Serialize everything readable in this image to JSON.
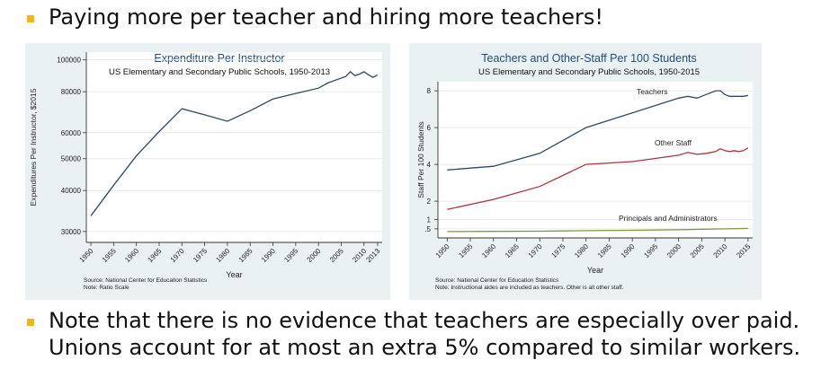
{
  "slide": {
    "heading": "Paying more per teacher and hiring more teachers!",
    "note_line1": "Note that there is no evidence that teachers are especially over paid.",
    "note_line2": "Unions account for at most an extra 5% compared to similar workers."
  },
  "colors": {
    "bullet": "#f2b51c",
    "panel_bg": "#eaf1f3",
    "title_blue": "#1f4e79",
    "teachers": "#2e4a62",
    "other_staff": "#a8343c",
    "principals": "#7a9a3a"
  },
  "chart_data": [
    {
      "type": "line",
      "title": "Expenditure Per Instructor",
      "subtitle": "US Elementary and Secondary Public Schools, 1950-2013",
      "xlabel": "Year",
      "ylabel": "Expenditures Per Instructor, $2015",
      "y_scale": "log",
      "ylim": [
        28500,
        103000
      ],
      "xlim": [
        1949,
        2014
      ],
      "x_ticks": [
        "1950",
        "1955",
        "1960",
        "1965",
        "1970",
        "1975",
        "1980",
        "1985",
        "1990",
        "1995",
        "2000",
        "2005",
        "2010",
        "2013"
      ],
      "y_ticks": [
        "30000",
        "40000",
        "50000",
        "60000",
        "80000",
        "100000"
      ],
      "y_tick_values": [
        30000,
        40000,
        50000,
        60000,
        80000,
        100000
      ],
      "source": "Source: National Center for Education Statistics",
      "note": "Note: Ratio Scale",
      "series": [
        {
          "x": [
            1950,
            1955,
            1960,
            1965,
            1970,
            1975,
            1980,
            1985,
            1990,
            1995,
            2000,
            2002,
            2004,
            2006,
            2007,
            2008,
            2009,
            2010,
            2011,
            2012,
            2013
          ],
          "values": [
            33500,
            41500,
            51000,
            60500,
            71000,
            68000,
            65000,
            70000,
            76000,
            79000,
            82000,
            85000,
            87000,
            89000,
            92000,
            89500,
            90500,
            92000,
            90000,
            88500,
            90000
          ]
        }
      ]
    },
    {
      "type": "line",
      "title": "Teachers and Other-Staff Per 100 Students",
      "subtitle": "US Elementary and Secondary Public Schools, 1950-2015",
      "xlabel": "Year",
      "ylabel": "Staff Per 100 Students",
      "ylim": [
        0.2,
        8.3
      ],
      "xlim": [
        1948,
        2016
      ],
      "x_ticks": [
        "1950",
        "1955",
        "1960",
        "1965",
        "1970",
        "1975",
        "1980",
        "1985",
        "1990",
        "1995",
        "2000",
        "2005",
        "2010",
        "2015"
      ],
      "y_ticks": [
        ".5",
        "1",
        "2",
        "4",
        "6",
        "8"
      ],
      "y_tick_values": [
        0.5,
        1,
        2,
        4,
        6,
        8
      ],
      "source": "Source: National Center for Education Statistics",
      "note": "Note: Instructional aides are included as teachers. Other is all other staff.",
      "series": [
        {
          "name": "Teachers",
          "x": [
            1950,
            1960,
            1970,
            1980,
            1990,
            2000,
            2002,
            2004,
            2006,
            2008,
            2009,
            2010,
            2011,
            2012,
            2013,
            2014,
            2015
          ],
          "values": [
            3.7,
            3.9,
            4.6,
            6.0,
            6.8,
            7.6,
            7.7,
            7.6,
            7.8,
            8.0,
            8.0,
            7.8,
            7.7,
            7.7,
            7.7,
            7.7,
            7.75
          ]
        },
        {
          "name": "Other Staff",
          "x": [
            1950,
            1960,
            1970,
            1980,
            1990,
            2000,
            2002,
            2004,
            2006,
            2008,
            2009,
            2010,
            2011,
            2012,
            2013,
            2014,
            2015
          ],
          "values": [
            1.55,
            2.1,
            2.8,
            4.0,
            4.15,
            4.5,
            4.65,
            4.55,
            4.6,
            4.7,
            4.85,
            4.75,
            4.7,
            4.75,
            4.7,
            4.75,
            4.9
          ]
        },
        {
          "name": "Principals and Administrators",
          "x": [
            1950,
            1960,
            1970,
            1980,
            1990,
            2000,
            2005,
            2010,
            2015
          ],
          "values": [
            0.35,
            0.36,
            0.37,
            0.4,
            0.42,
            0.45,
            0.48,
            0.5,
            0.52
          ]
        }
      ]
    }
  ]
}
